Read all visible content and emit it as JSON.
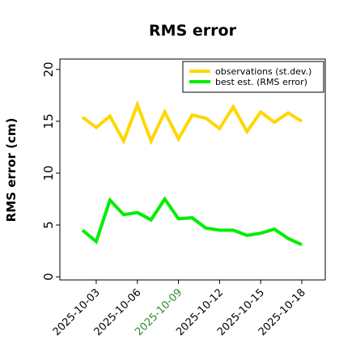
{
  "chart_data": {
    "type": "line",
    "title": "RMS error",
    "xlabel": "",
    "ylabel": "RMS error (cm)",
    "ylim": [
      -0.3,
      21.0
    ],
    "yticks": [
      0,
      5,
      10,
      15,
      20
    ],
    "x": [
      "2025-10-02",
      "2025-10-03",
      "2025-10-04",
      "2025-10-05",
      "2025-10-06",
      "2025-10-07",
      "2025-10-08",
      "2025-10-09",
      "2025-10-10",
      "2025-10-11",
      "2025-10-12",
      "2025-10-13",
      "2025-10-14",
      "2025-10-15",
      "2025-10-16",
      "2025-10-17",
      "2025-10-18"
    ],
    "xticks": [
      {
        "label": "2025-10-03",
        "color": "#000000"
      },
      {
        "label": "2025-10-06",
        "color": "#000000"
      },
      {
        "label": "2025-10-09",
        "color": "#2e8b2e"
      },
      {
        "label": "2025-10-12",
        "color": "#000000"
      },
      {
        "label": "2025-10-15",
        "color": "#000000"
      },
      {
        "label": "2025-10-18",
        "color": "#000000"
      }
    ],
    "series": [
      {
        "name": "observations (st.dev.)",
        "color": "#ffd700",
        "values": [
          15.4,
          14.4,
          15.5,
          13.1,
          16.6,
          13.1,
          15.9,
          13.3,
          15.6,
          15.3,
          14.3,
          16.4,
          14.0,
          15.9,
          14.9,
          15.8,
          15.0
        ]
      },
      {
        "name": "best est. (RMS error)",
        "color": "#00ee00",
        "values": [
          4.5,
          3.4,
          7.4,
          6.0,
          6.2,
          5.5,
          7.5,
          5.6,
          5.7,
          4.7,
          4.5,
          4.5,
          4.0,
          4.2,
          4.6,
          3.7,
          3.1
        ]
      }
    ],
    "legend_position": "top-right",
    "grid": false
  }
}
